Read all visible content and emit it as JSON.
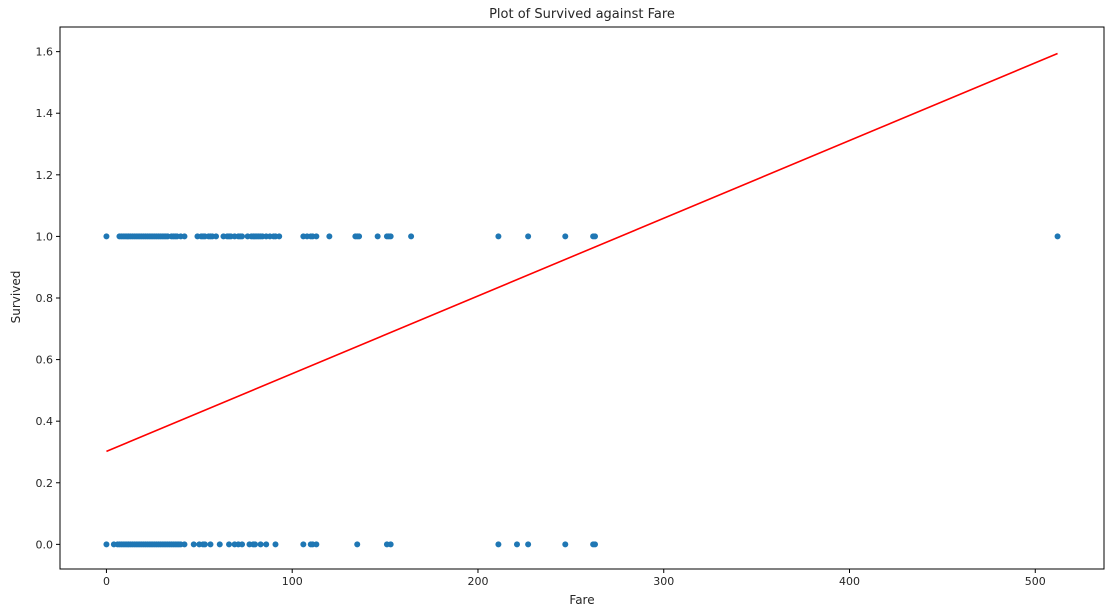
{
  "chart_data": {
    "type": "scatter",
    "title": "Plot of Survived against Fare",
    "xlabel": "Fare",
    "ylabel": "Survived",
    "xlim": [
      -25,
      537
    ],
    "ylim": [
      -0.08,
      1.68
    ],
    "x_ticks": [
      0,
      100,
      200,
      300,
      400,
      500
    ],
    "y_ticks": [
      0.0,
      0.2,
      0.4,
      0.6,
      0.8,
      1.0,
      1.2,
      1.4,
      1.6
    ],
    "x_tick_labels": [
      "0",
      "100",
      "200",
      "300",
      "400",
      "500"
    ],
    "y_tick_labels": [
      "0.0",
      "0.2",
      "0.4",
      "0.6",
      "0.8",
      "1.0",
      "1.2",
      "1.4",
      "1.6"
    ],
    "grid": false,
    "series": [
      {
        "kind": "scatter",
        "color": "#1f77b4",
        "points": [
          [
            0,
            1
          ],
          [
            7,
            1
          ],
          [
            8,
            1
          ],
          [
            9,
            1
          ],
          [
            10,
            1
          ],
          [
            11,
            1
          ],
          [
            12,
            1
          ],
          [
            13,
            1
          ],
          [
            14,
            1
          ],
          [
            15,
            1
          ],
          [
            16,
            1
          ],
          [
            17,
            1
          ],
          [
            18,
            1
          ],
          [
            19,
            1
          ],
          [
            20,
            1
          ],
          [
            21,
            1
          ],
          [
            22,
            1
          ],
          [
            23,
            1
          ],
          [
            24,
            1
          ],
          [
            25,
            1
          ],
          [
            26,
            1
          ],
          [
            27,
            1
          ],
          [
            28,
            1
          ],
          [
            29,
            1
          ],
          [
            30,
            1
          ],
          [
            31,
            1
          ],
          [
            32,
            1
          ],
          [
            33,
            1
          ],
          [
            35,
            1
          ],
          [
            36,
            1
          ],
          [
            37,
            1
          ],
          [
            38,
            1
          ],
          [
            40,
            1
          ],
          [
            42,
            1
          ],
          [
            49,
            1
          ],
          [
            51,
            1
          ],
          [
            52,
            1
          ],
          [
            53,
            1
          ],
          [
            55,
            1
          ],
          [
            56,
            1
          ],
          [
            57,
            1
          ],
          [
            59,
            1
          ],
          [
            63,
            1
          ],
          [
            65,
            1
          ],
          [
            66,
            1
          ],
          [
            67,
            1
          ],
          [
            69,
            1
          ],
          [
            71,
            1
          ],
          [
            72,
            1
          ],
          [
            73,
            1
          ],
          [
            76,
            1
          ],
          [
            78,
            1
          ],
          [
            79,
            1
          ],
          [
            80,
            1
          ],
          [
            81,
            1
          ],
          [
            82,
            1
          ],
          [
            83,
            1
          ],
          [
            84,
            1
          ],
          [
            86,
            1
          ],
          [
            88,
            1
          ],
          [
            90,
            1
          ],
          [
            91,
            1
          ],
          [
            93,
            1
          ],
          [
            106,
            1
          ],
          [
            108,
            1
          ],
          [
            110,
            1
          ],
          [
            111,
            1
          ],
          [
            113,
            1
          ],
          [
            120,
            1
          ],
          [
            134,
            1
          ],
          [
            135,
            1
          ],
          [
            136,
            1
          ],
          [
            146,
            1
          ],
          [
            151,
            1
          ],
          [
            152,
            1
          ],
          [
            153,
            1
          ],
          [
            164,
            1
          ],
          [
            211,
            1
          ],
          [
            227,
            1
          ],
          [
            247,
            1
          ],
          [
            262,
            1
          ],
          [
            263,
            1
          ],
          [
            512,
            1
          ],
          [
            0,
            0
          ],
          [
            4,
            0
          ],
          [
            6,
            0
          ],
          [
            7,
            0
          ],
          [
            8,
            0
          ],
          [
            9,
            0
          ],
          [
            10,
            0
          ],
          [
            11,
            0
          ],
          [
            12,
            0
          ],
          [
            13,
            0
          ],
          [
            14,
            0
          ],
          [
            15,
            0
          ],
          [
            16,
            0
          ],
          [
            17,
            0
          ],
          [
            18,
            0
          ],
          [
            19,
            0
          ],
          [
            20,
            0
          ],
          [
            21,
            0
          ],
          [
            22,
            0
          ],
          [
            23,
            0
          ],
          [
            24,
            0
          ],
          [
            25,
            0
          ],
          [
            26,
            0
          ],
          [
            27,
            0
          ],
          [
            28,
            0
          ],
          [
            29,
            0
          ],
          [
            30,
            0
          ],
          [
            31,
            0
          ],
          [
            32,
            0
          ],
          [
            33,
            0
          ],
          [
            34,
            0
          ],
          [
            35,
            0
          ],
          [
            36,
            0
          ],
          [
            37,
            0
          ],
          [
            38,
            0
          ],
          [
            39,
            0
          ],
          [
            40,
            0
          ],
          [
            42,
            0
          ],
          [
            47,
            0
          ],
          [
            50,
            0
          ],
          [
            52,
            0
          ],
          [
            53,
            0
          ],
          [
            56,
            0
          ],
          [
            61,
            0
          ],
          [
            66,
            0
          ],
          [
            69,
            0
          ],
          [
            71,
            0
          ],
          [
            73,
            0
          ],
          [
            77,
            0
          ],
          [
            79,
            0
          ],
          [
            80,
            0
          ],
          [
            83,
            0
          ],
          [
            86,
            0
          ],
          [
            91,
            0
          ],
          [
            106,
            0
          ],
          [
            110,
            0
          ],
          [
            111,
            0
          ],
          [
            113,
            0
          ],
          [
            135,
            0
          ],
          [
            151,
            0
          ],
          [
            153,
            0
          ],
          [
            211,
            0
          ],
          [
            221,
            0
          ],
          [
            227,
            0
          ],
          [
            247,
            0
          ],
          [
            262,
            0
          ],
          [
            263,
            0
          ]
        ]
      },
      {
        "kind": "line",
        "color": "#ff0000",
        "points": [
          [
            0,
            0.302
          ],
          [
            512,
            1.594
          ]
        ]
      }
    ]
  }
}
